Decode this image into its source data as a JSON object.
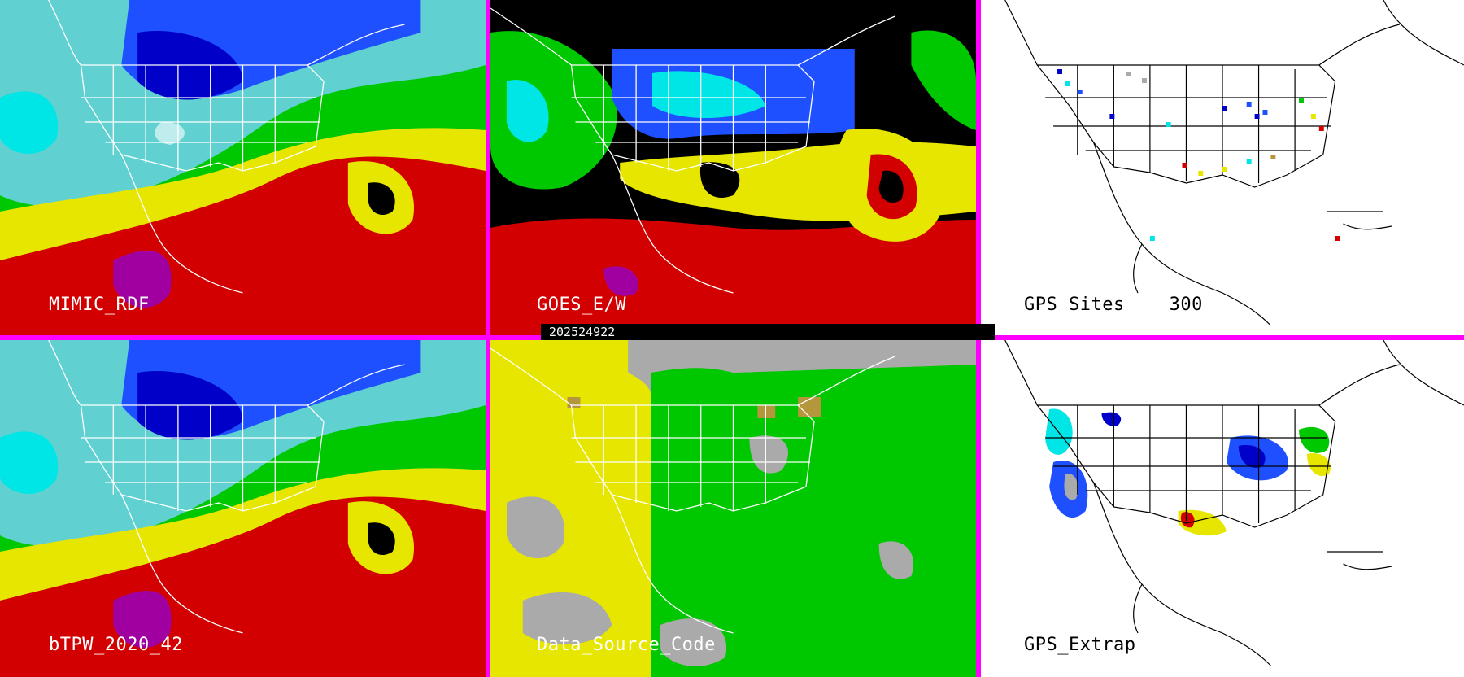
{
  "panels": [
    {
      "id": "mimic",
      "label": "MIMIC_RDF",
      "label_color": "#ffffff"
    },
    {
      "id": "goes",
      "label": "GOES_E/W",
      "label_color": "#ffffff"
    },
    {
      "id": "gps_sites",
      "label": "GPS Sites    300",
      "label_color": "#000000"
    },
    {
      "id": "btpw",
      "label": "bTPW_2020_42",
      "label_color": "#ffffff"
    },
    {
      "id": "dsc",
      "label": "Data_Source_Code",
      "label_color": "#ffffff"
    },
    {
      "id": "gps_extrap",
      "label": "GPS_Extrap",
      "label_color": "#000000"
    }
  ],
  "timestamp": "202524922",
  "colors": {
    "divider": "#ff00ff",
    "tpw_scale": [
      "#000000",
      "#0000c8",
      "#1e50ff",
      "#00e6e6",
      "#00c800",
      "#e6e600",
      "#d20000",
      "#a000a0"
    ],
    "data_source": {
      "goes": "#00c800",
      "other": "#e6e600",
      "none": "#aaaaaa",
      "blend": "#b4963c"
    }
  },
  "icons": [
    "us-states-outline",
    "coastline-outline",
    "gps-site-marker"
  ]
}
